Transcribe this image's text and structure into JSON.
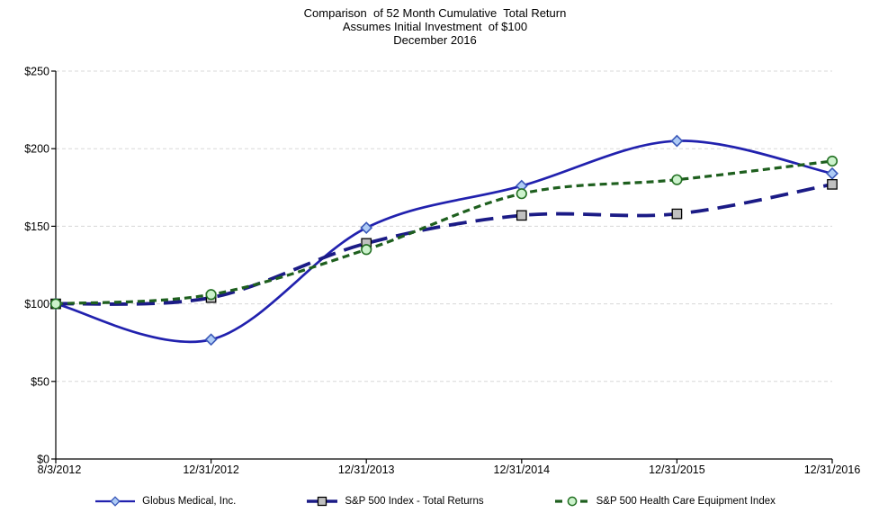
{
  "chart_data": {
    "type": "line",
    "title_lines": [
      "Comparison  of 52 Month Cumulative  Total Return",
      "Assumes Initial Investment  of $100",
      "December 2016"
    ],
    "x_labels": [
      "8/3/2012",
      "12/31/2012",
      "12/31/2013",
      "12/31/2014",
      "12/31/2015",
      "12/31/2016"
    ],
    "y_tick_labels": [
      "$0",
      "$50",
      "$100",
      "$150",
      "$200",
      "$250"
    ],
    "ylim": [
      0,
      250
    ],
    "y_step": 50,
    "grid": "horizontal dashed",
    "legend_position": "bottom",
    "line_smoothing": "smoothed (Excel-style spline)",
    "series": [
      {
        "name": "Globus Medical, Inc.",
        "marker": "diamond",
        "line_style": "solid",
        "color": "#2121AE",
        "marker_fill": "#AECBF5",
        "marker_stroke": "#3A58B8",
        "values": [
          100,
          77,
          149,
          176,
          205,
          184
        ]
      },
      {
        "name": "S&P 500 Index - Total Returns",
        "marker": "square",
        "line_style": "long-dash",
        "color": "#1B1B86",
        "marker_fill": "#C0C0C0",
        "marker_stroke": "#000000",
        "values": [
          100,
          104,
          139,
          157,
          158,
          177
        ]
      },
      {
        "name": "S&P 500 Health Care Equipment Index",
        "marker": "circle",
        "line_style": "short-dash",
        "color": "#1E5F1E",
        "marker_fill": "#CCF2CC",
        "marker_stroke": "#237023",
        "values": [
          100,
          106,
          135,
          171,
          180,
          192
        ]
      }
    ]
  }
}
